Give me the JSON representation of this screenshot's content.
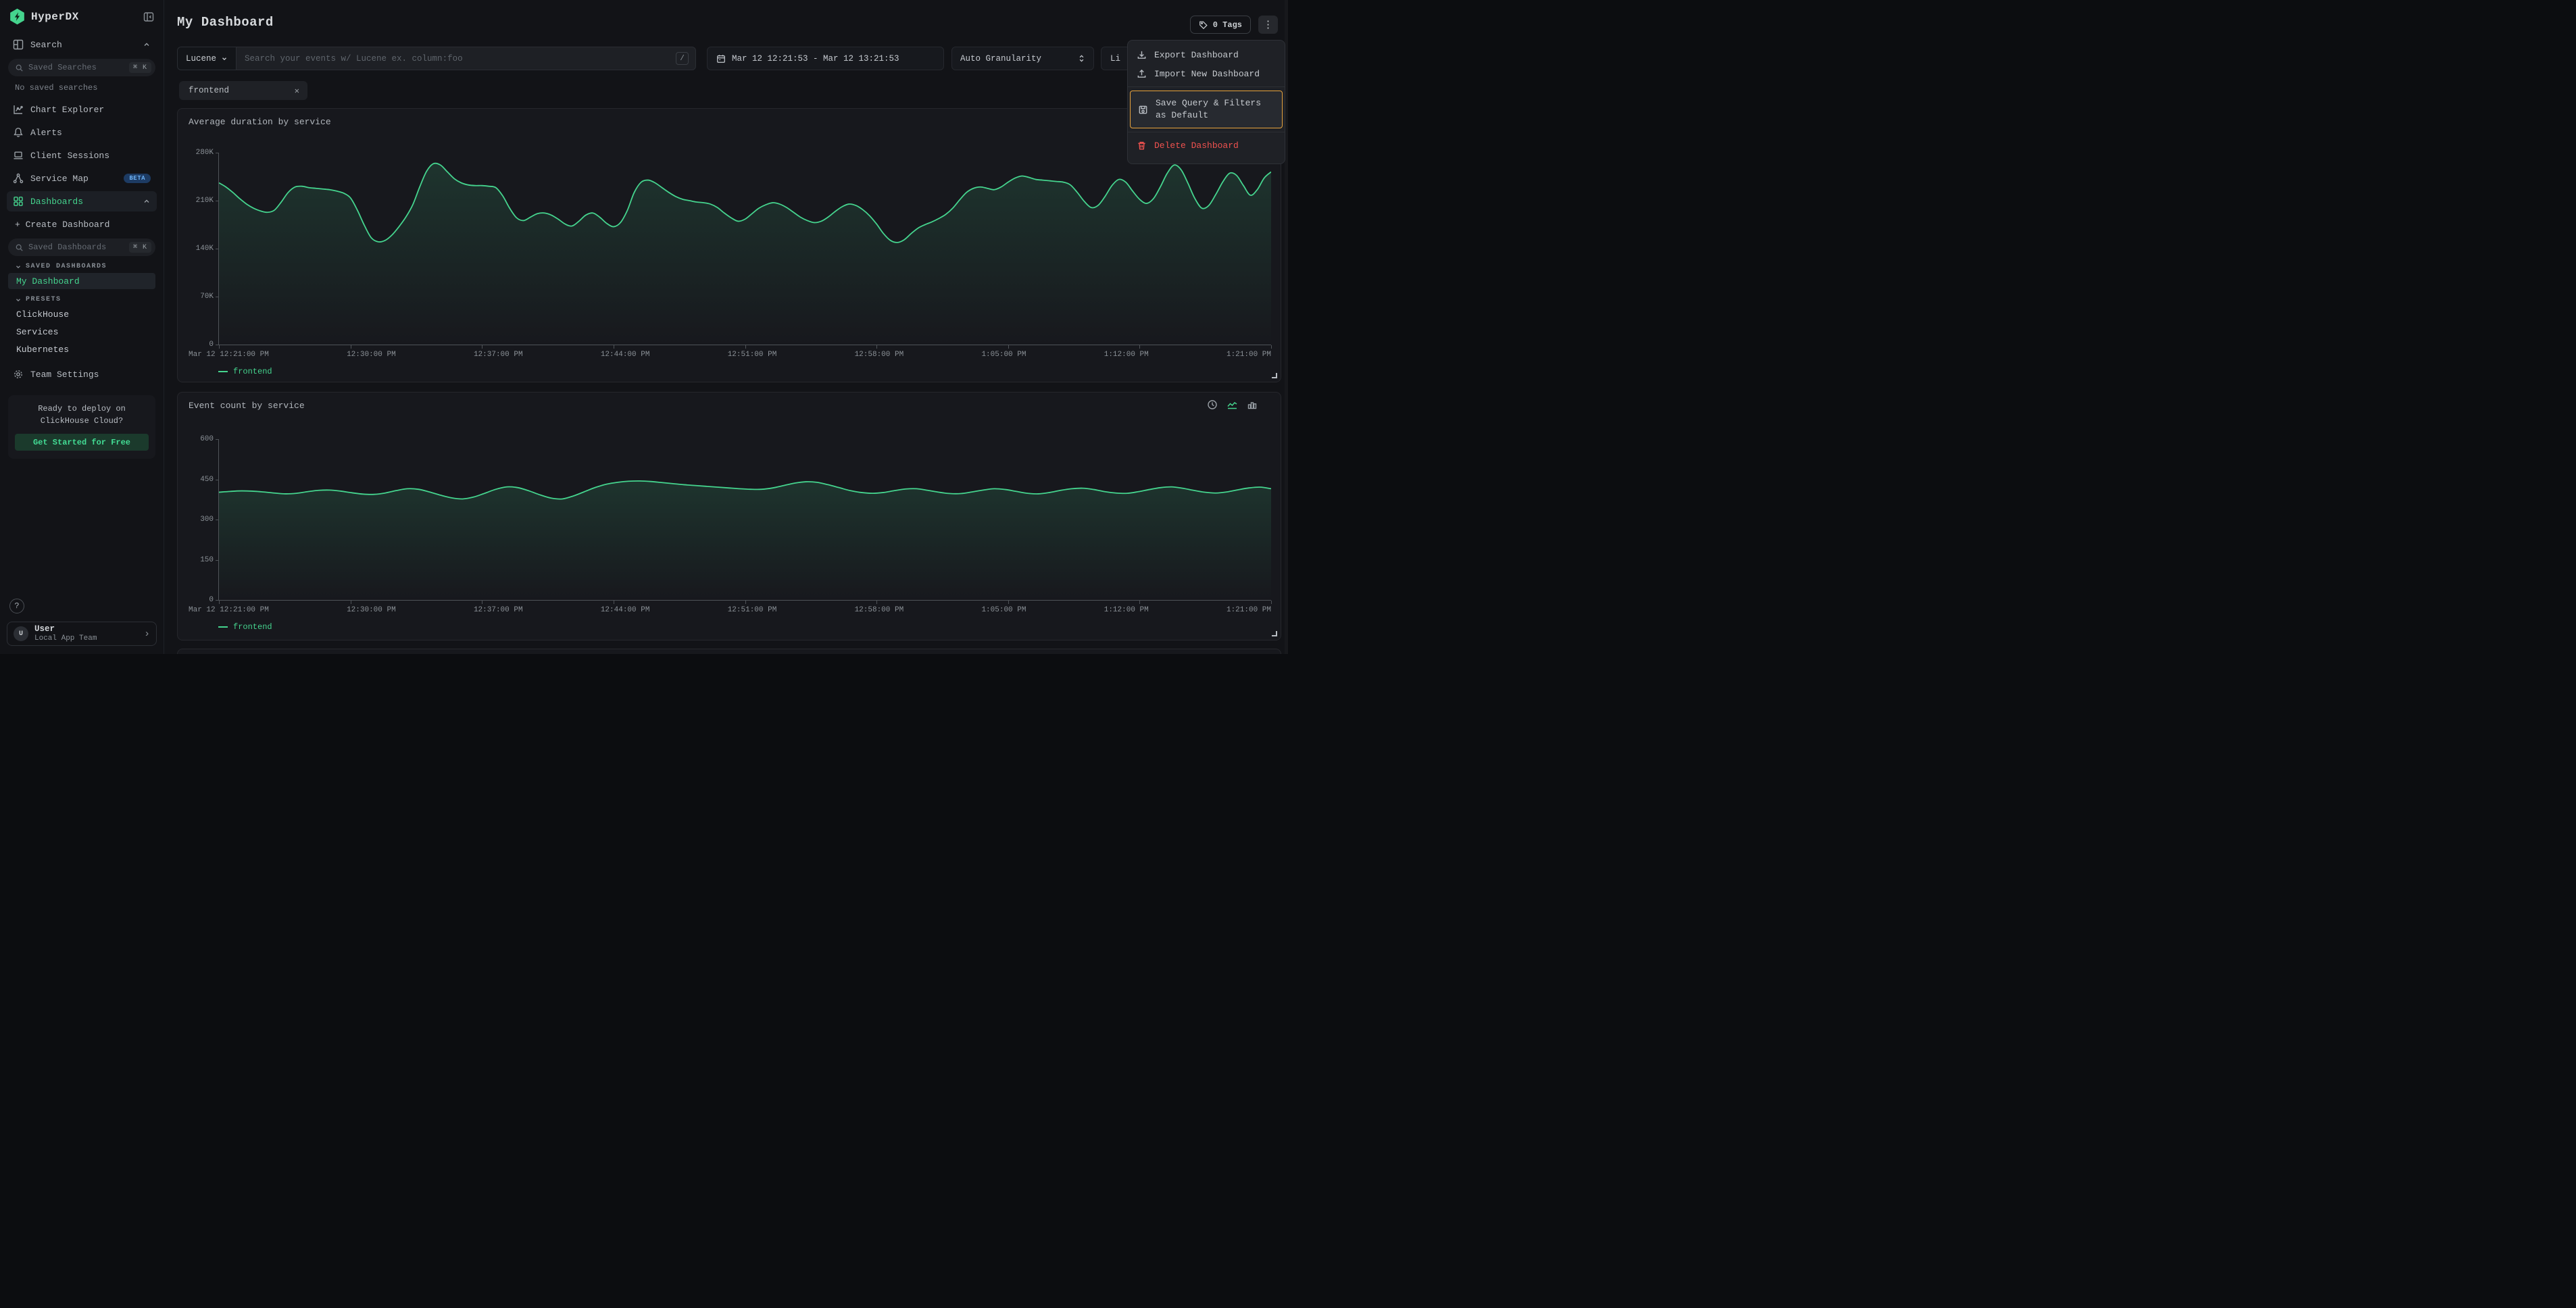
{
  "app": {
    "brand": "HyperDX"
  },
  "sidebar": {
    "nav_search_label": "Search",
    "saved_searches_placeholder": "Saved Searches",
    "shortcut": "⌘ K",
    "no_saved_searches": "No saved searches",
    "items": [
      "Chart Explorer",
      "Alerts",
      "Client Sessions",
      "Service Map",
      "Dashboards"
    ],
    "beta_badge": "BETA",
    "create_dashboard": "+ Create Dashboard",
    "saved_dashboards_placeholder": "Saved Dashboards",
    "section_saved": "SAVED DASHBOARDS",
    "section_presets": "PRESETS",
    "my_dashboard": "My Dashboard",
    "presets": [
      "ClickHouse",
      "Services",
      "Kubernetes"
    ],
    "team_settings": "Team Settings",
    "promo": {
      "text": "Ready to deploy on ClickHouse Cloud?",
      "cta": "Get Started for Free"
    },
    "help": "?",
    "user": {
      "initial": "U",
      "name": "User",
      "team": "Local App Team"
    }
  },
  "header": {
    "title": "My Dashboard",
    "tags_label": "0 Tags"
  },
  "filters": {
    "language": "Lucene",
    "search_placeholder": "Search your events w/ Lucene ex. column:foo",
    "slash_key": "/",
    "date_range": "Mar 12 12:21:53 - Mar 12 13:21:53",
    "granularity": "Auto Granularity",
    "live_label_visible": "Li",
    "chip": "frontend"
  },
  "menu": {
    "items": [
      {
        "label": "Export Dashboard",
        "icon": "download-icon"
      },
      {
        "label": "Import New Dashboard",
        "icon": "upload-icon"
      },
      {
        "label": "Save Query & Filters as Default",
        "icon": "save-icon",
        "highlighted": true
      },
      {
        "label": "Delete Dashboard",
        "icon": "trash-icon",
        "danger": true
      }
    ]
  },
  "colors": {
    "accent_green": "#45d48e",
    "danger_red": "#f0524f",
    "highlight_orange": "#e8a33d",
    "beta_blue": "#6cb1f5"
  },
  "chart_data": [
    {
      "type": "line",
      "title": "Average duration by service",
      "ylim": [
        0,
        280
      ],
      "y_unit": "K",
      "yticks": [
        "280K",
        "210K",
        "140K",
        "70K",
        "0"
      ],
      "x_labels": [
        "Mar 12 12:21:00 PM",
        "12:30:00 PM",
        "12:37:00 PM",
        "12:44:00 PM",
        "12:51:00 PM",
        "12:58:00 PM",
        "1:05:00 PM",
        "1:12:00 PM",
        "1:21:00 PM"
      ],
      "color": "#45d48e",
      "grid": false,
      "legend_position": "bottom-left",
      "series": [
        {
          "name": "frontend",
          "values": [
            236,
            230,
            222,
            213,
            205,
            199,
            195,
            193,
            196,
            208,
            222,
            230,
            231,
            229,
            228,
            227,
            226,
            224,
            221,
            214,
            196,
            174,
            156,
            150,
            152,
            160,
            172,
            186,
            204,
            230,
            253,
            264,
            262,
            252,
            242,
            236,
            233,
            232,
            232,
            231,
            229,
            217,
            199,
            185,
            181,
            186,
            191,
            192,
            189,
            183,
            176,
            173,
            180,
            189,
            192,
            186,
            177,
            172,
            178,
            196,
            222,
            237,
            240,
            236,
            229,
            222,
            216,
            212,
            210,
            208,
            207,
            205,
            200,
            192,
            185,
            180,
            183,
            191,
            199,
            204,
            207,
            205,
            200,
            193,
            186,
            181,
            178,
            180,
            186,
            194,
            201,
            205,
            203,
            197,
            188,
            176,
            162,
            152,
            149,
            153,
            162,
            170,
            175,
            179,
            184,
            190,
            199,
            211,
            222,
            228,
            230,
            228,
            226,
            230,
            237,
            243,
            246,
            244,
            241,
            240,
            239,
            238,
            237,
            233,
            222,
            209,
            200,
            203,
            216,
            232,
            241,
            237,
            224,
            212,
            206,
            213,
            230,
            250,
            262,
            255,
            235,
            213,
            199,
            203,
            219,
            237,
            250,
            247,
            232,
            218,
            226,
            243,
            252
          ]
        }
      ]
    },
    {
      "type": "line",
      "title": "Event count by service",
      "ylim": [
        0,
        600
      ],
      "y_unit": "",
      "yticks": [
        "600",
        "450",
        "300",
        "150",
        "0"
      ],
      "x_labels": [
        "Mar 12 12:21:00 PM",
        "12:30:00 PM",
        "12:37:00 PM",
        "12:44:00 PM",
        "12:51:00 PM",
        "12:58:00 PM",
        "1:05:00 PM",
        "1:12:00 PM",
        "1:21:00 PM"
      ],
      "color": "#45d48e",
      "grid": false,
      "legend_position": "bottom-left",
      "series": [
        {
          "name": "frontend",
          "values": [
            402,
            405,
            407,
            406,
            403,
            399,
            396,
            398,
            404,
            409,
            410,
            406,
            400,
            395,
            394,
            399,
            408,
            415,
            413,
            403,
            391,
            381,
            377,
            384,
            398,
            413,
            422,
            419,
            407,
            392,
            380,
            377,
            388,
            404,
            420,
            432,
            439,
            443,
            444,
            442,
            438,
            434,
            430,
            427,
            424,
            421,
            418,
            415,
            413,
            413,
            418,
            427,
            436,
            441,
            439,
            430,
            419,
            408,
            401,
            398,
            401,
            408,
            414,
            415,
            409,
            402,
            397,
            397,
            403,
            410,
            415,
            412,
            405,
            398,
            396,
            401,
            409,
            415,
            417,
            412,
            404,
            399,
            398,
            404,
            412,
            419,
            422,
            417,
            409,
            402,
            399,
            403,
            411,
            418,
            421,
            415
          ]
        }
      ]
    }
  ]
}
